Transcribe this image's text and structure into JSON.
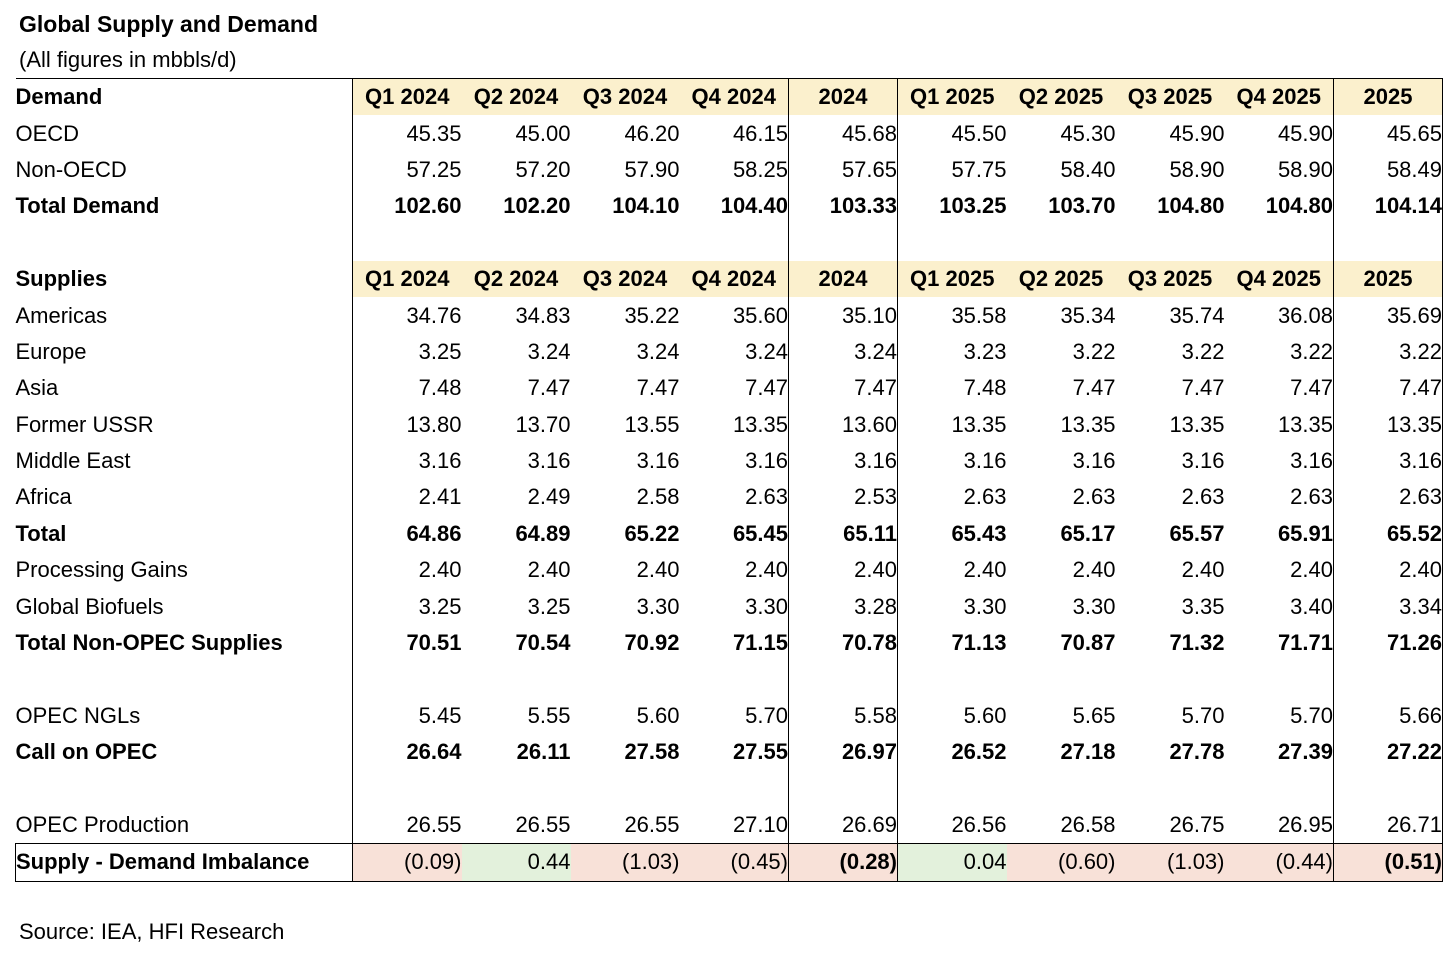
{
  "title": "Global Supply and Demand",
  "subtitle": "(All figures in mbbls/d)",
  "source": "Source: IEA, HFI Research",
  "colors": {
    "header_fill": "#fbf0cd",
    "negative_fill": "#f8e1d8",
    "positive_fill": "#e3f1dc"
  },
  "chart_data": {
    "type": "table",
    "title": "Global Supply and Demand",
    "units": "mbbls/d",
    "columns": [
      "Q1 2024",
      "Q2 2024",
      "Q3 2024",
      "Q4 2024",
      "2024",
      "Q1 2025",
      "Q2 2025",
      "Q3 2025",
      "Q4 2025",
      "2025"
    ],
    "rows": [
      {
        "label": "Demand",
        "kind": "header"
      },
      {
        "label": "OECD",
        "kind": "sub",
        "values": [
          "45.35",
          "45.00",
          "46.20",
          "46.15",
          "45.68",
          "45.50",
          "45.30",
          "45.90",
          "45.90",
          "45.65"
        ]
      },
      {
        "label": "Non-OECD",
        "kind": "sub",
        "values": [
          "57.25",
          "57.20",
          "57.90",
          "58.25",
          "57.65",
          "57.75",
          "58.40",
          "58.90",
          "58.90",
          "58.49"
        ]
      },
      {
        "label": "Total Demand",
        "kind": "total",
        "values": [
          "102.60",
          "102.20",
          "104.10",
          "104.40",
          "103.33",
          "103.25",
          "103.70",
          "104.80",
          "104.80",
          "104.14"
        ]
      },
      {
        "label": "",
        "kind": "blank"
      },
      {
        "label": "Supplies",
        "kind": "header"
      },
      {
        "label": "Americas",
        "kind": "sub",
        "values": [
          "34.76",
          "34.83",
          "35.22",
          "35.60",
          "35.10",
          "35.58",
          "35.34",
          "35.74",
          "36.08",
          "35.69"
        ]
      },
      {
        "label": "Europe",
        "kind": "sub",
        "values": [
          "3.25",
          "3.24",
          "3.24",
          "3.24",
          "3.24",
          "3.23",
          "3.22",
          "3.22",
          "3.22",
          "3.22"
        ]
      },
      {
        "label": "Asia",
        "kind": "sub",
        "values": [
          "7.48",
          "7.47",
          "7.47",
          "7.47",
          "7.47",
          "7.48",
          "7.47",
          "7.47",
          "7.47",
          "7.47"
        ]
      },
      {
        "label": "Former USSR",
        "kind": "sub",
        "values": [
          "13.80",
          "13.70",
          "13.55",
          "13.35",
          "13.60",
          "13.35",
          "13.35",
          "13.35",
          "13.35",
          "13.35"
        ]
      },
      {
        "label": "Middle East",
        "kind": "sub",
        "values": [
          "3.16",
          "3.16",
          "3.16",
          "3.16",
          "3.16",
          "3.16",
          "3.16",
          "3.16",
          "3.16",
          "3.16"
        ]
      },
      {
        "label": "Africa",
        "kind": "sub",
        "values": [
          "2.41",
          "2.49",
          "2.58",
          "2.63",
          "2.53",
          "2.63",
          "2.63",
          "2.63",
          "2.63",
          "2.63"
        ]
      },
      {
        "label": "Total",
        "kind": "total",
        "values": [
          "64.86",
          "64.89",
          "65.22",
          "65.45",
          "65.11",
          "65.43",
          "65.17",
          "65.57",
          "65.91",
          "65.52"
        ]
      },
      {
        "label": "Processing Gains",
        "kind": "sub",
        "values": [
          "2.40",
          "2.40",
          "2.40",
          "2.40",
          "2.40",
          "2.40",
          "2.40",
          "2.40",
          "2.40",
          "2.40"
        ]
      },
      {
        "label": "Global Biofuels",
        "kind": "sub",
        "values": [
          "3.25",
          "3.25",
          "3.30",
          "3.30",
          "3.28",
          "3.30",
          "3.30",
          "3.35",
          "3.40",
          "3.34"
        ]
      },
      {
        "label": "Total Non-OPEC Supplies",
        "kind": "total",
        "values": [
          "70.51",
          "70.54",
          "70.92",
          "71.15",
          "70.78",
          "71.13",
          "70.87",
          "71.32",
          "71.71",
          "71.26"
        ]
      },
      {
        "label": "",
        "kind": "blank"
      },
      {
        "label": "OPEC NGLs",
        "kind": "sub",
        "values": [
          "5.45",
          "5.55",
          "5.60",
          "5.70",
          "5.58",
          "5.60",
          "5.65",
          "5.70",
          "5.70",
          "5.66"
        ]
      },
      {
        "label": "Call on OPEC",
        "kind": "total",
        "values": [
          "26.64",
          "26.11",
          "27.58",
          "27.55",
          "26.97",
          "26.52",
          "27.18",
          "27.78",
          "27.39",
          "27.22"
        ]
      },
      {
        "label": "",
        "kind": "blank"
      },
      {
        "label": "OPEC Production",
        "kind": "plain",
        "values": [
          "26.55",
          "26.55",
          "26.55",
          "27.10",
          "26.69",
          "26.56",
          "26.58",
          "26.75",
          "26.95",
          "26.71"
        ]
      },
      {
        "label": "Supply - Demand Imbalance",
        "kind": "imbalance",
        "values": [
          "(0.09)",
          "0.44",
          "(1.03)",
          "(0.45)",
          "(0.28)",
          "0.04",
          "(0.60)",
          "(1.03)",
          "(0.44)",
          "(0.51)"
        ]
      }
    ]
  }
}
